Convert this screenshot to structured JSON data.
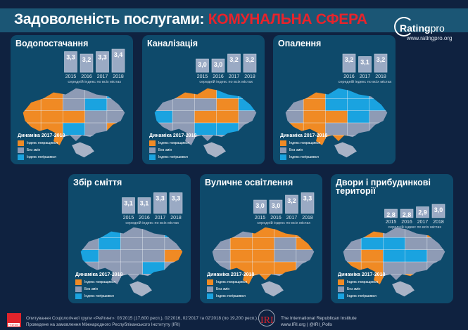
{
  "header": {
    "title_main": "Задоволеність послугами: ",
    "title_accent": "КОМУНАЛЬНА СФЕРА"
  },
  "logo": {
    "name_bold": "Rating",
    "name_light": "pro",
    "url": "www.ratingpro.org"
  },
  "colors": {
    "improved": "#f08a24",
    "no_change": "#8e9bb5",
    "worsened": "#1aa3e0",
    "bar": "#9aaac4",
    "accent": "#e8232b"
  },
  "legend": {
    "title": "Динаміка 2017-2018",
    "items": [
      "Індекс покращився",
      "Без змін",
      "Індекс погіршився"
    ]
  },
  "chart_data": [
    {
      "type": "bar",
      "title": "Водопостачання",
      "categories": [
        "2015",
        "2016",
        "2017",
        "2018"
      ],
      "values": [
        3.3,
        3.2,
        3.3,
        3.4
      ],
      "labels": [
        "3,3",
        "3,2",
        "3,3",
        "3,4"
      ],
      "xlabel": "середній індекс по всіх містах"
    },
    {
      "type": "bar",
      "title": "Каналізація",
      "categories": [
        "2015",
        "2016",
        "2017",
        "2018"
      ],
      "values": [
        3.0,
        3.0,
        3.2,
        3.2
      ],
      "labels": [
        "3,0",
        "3,0",
        "3,2",
        "3,2"
      ],
      "xlabel": "середній індекс по всіх містах"
    },
    {
      "type": "bar",
      "title": "Опалення",
      "categories": [
        "2016",
        "2017",
        "2018"
      ],
      "values": [
        3.2,
        3.1,
        3.2
      ],
      "labels": [
        "3,2",
        "3,1",
        "3,2"
      ],
      "xlabel": "середній індекс по всіх містах"
    },
    {
      "type": "bar",
      "title": "Збір сміття",
      "categories": [
        "2015",
        "2016",
        "2017",
        "2018"
      ],
      "values": [
        3.1,
        3.1,
        3.3,
        3.3
      ],
      "labels": [
        "3,1",
        "3,1",
        "3,3",
        "3,3"
      ],
      "xlabel": "середній індекс по всіх містах"
    },
    {
      "type": "bar",
      "title": "Вуличне освітлення",
      "categories": [
        "2015",
        "2016",
        "2017",
        "2018"
      ],
      "values": [
        3.0,
        3.0,
        3.2,
        3.3
      ],
      "labels": [
        "3,0",
        "3,0",
        "3,2",
        "3,3"
      ],
      "xlabel": "середній індекс по всіх містах"
    },
    {
      "type": "bar",
      "title": "Двори і прибудинкові території",
      "categories": [
        "2015",
        "2016",
        "2017",
        "2018"
      ],
      "values": [
        2.8,
        2.8,
        2.9,
        3.0
      ],
      "labels": [
        "2,8",
        "2,8",
        "2,9",
        "3,0"
      ],
      "xlabel": "середній індекс по всіх містах"
    }
  ],
  "footer": {
    "line1": "Опитування Соціологічної групи «Рейтинг»: 03'2015 (17,600 респ.), 02'2016, 02'2017 та 02'2018 (по 19,200 респ.).",
    "line2": "Проведене на замовлення Міжнародного Республіканського Інституту (IRI)",
    "rating_logo": "Рейтинг",
    "iri_logo": "IRI",
    "iri_line1": "The International Republican Institute",
    "iri_line2": "www.IRI.org | @IRI_Polls"
  }
}
